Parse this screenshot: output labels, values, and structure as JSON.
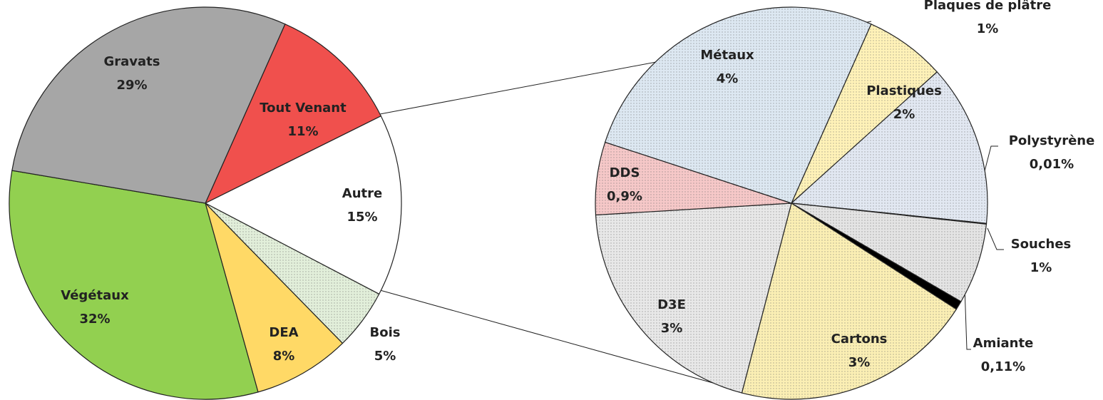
{
  "chart_data": [
    {
      "type": "pie",
      "categories": [
        "Tout Venant",
        "Autre",
        "Bois",
        "DEA",
        "Végétaux",
        "Gravats"
      ],
      "values": [
        11,
        15,
        5,
        8,
        32,
        29
      ],
      "value_labels": [
        "11%",
        "15%",
        "5%",
        "8%",
        "32%",
        "29%"
      ],
      "colors": [
        "#f0504d",
        "#ffffff",
        "#e2efda",
        "#ffd966",
        "#92d050",
        "#a6a6a6"
      ]
    },
    {
      "type": "pie",
      "categories": [
        "Plaques de plâtre",
        "Plastiques",
        "Polystyrène",
        "Souches",
        "Amiante",
        "Cartons",
        "D3E",
        "DDS",
        "Métaux"
      ],
      "values": [
        1,
        2,
        0.01,
        1,
        0.11,
        3,
        3,
        0.9,
        4
      ],
      "value_labels": [
        "1%",
        "2%",
        "0,01%",
        "1%",
        "0,11%",
        "3%",
        "3%",
        "0,9%",
        "4%"
      ],
      "colors": [
        "#fff2b8",
        "#e2e8f2",
        "#333333",
        "#e4e4e4",
        "#000000",
        "#fbefb4",
        "#e8e8e8",
        "#f6c8c8",
        "#dde8f2"
      ]
    }
  ]
}
